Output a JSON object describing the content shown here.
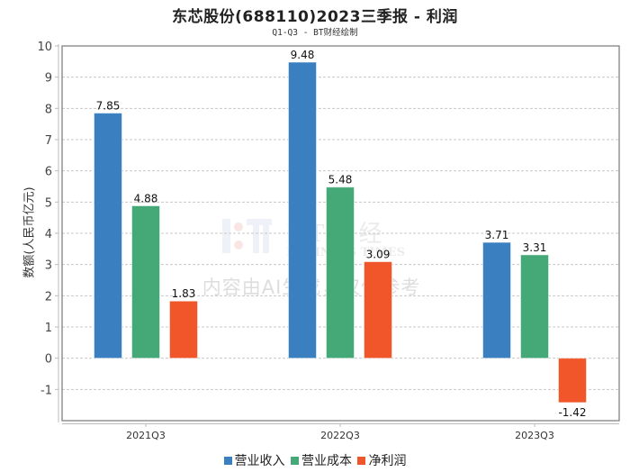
{
  "header": {
    "title": "东芯股份(688110)2023三季报 - 利润",
    "subtitle": "Q1-Q3 - BT财经绘制"
  },
  "watermark": {
    "logo_text": "BT财经",
    "logo_sub": "BUSINESS TIMES",
    "notice": "内容由AI生成，仅供参考"
  },
  "chart_data": {
    "type": "bar",
    "title": "东芯股份(688110)2023三季报 - 利润",
    "subtitle": "Q1-Q3 - BT财经绘制",
    "xlabel": "",
    "ylabel": "数额(人民币亿元)",
    "categories": [
      "2021Q3",
      "2022Q3",
      "2023Q3"
    ],
    "series": [
      {
        "name": "营业收入",
        "color": "#3a80c0",
        "values": [
          7.85,
          9.48,
          3.71
        ],
        "labels": [
          "7.85",
          "9.48",
          "3.71"
        ]
      },
      {
        "name": "营业成本",
        "color": "#45a877",
        "values": [
          4.88,
          5.48,
          3.31
        ],
        "labels": [
          "4.88",
          "5.48",
          "3.31"
        ]
      },
      {
        "name": "净利润",
        "color": "#f0562a",
        "values": [
          1.83,
          3.09,
          -1.42
        ],
        "labels": [
          "1.83",
          "3.09",
          "-1.42"
        ]
      }
    ],
    "ylim": [
      -2,
      10
    ],
    "yticks": [
      -1,
      0,
      1,
      2,
      3,
      4,
      5,
      6,
      7,
      8,
      9,
      10
    ],
    "ytick_labels": [
      "-1",
      "0",
      "1",
      "2",
      "3",
      "4",
      "5",
      "6",
      "7",
      "8",
      "9",
      "10"
    ],
    "grid": true,
    "legend_position": "bottom"
  }
}
